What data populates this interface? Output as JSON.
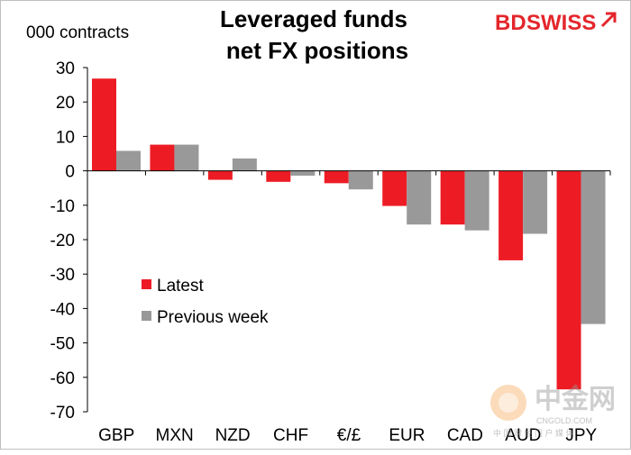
{
  "chart_data": {
    "type": "bar",
    "title": [
      "Leveraged funds",
      "net FX positions"
    ],
    "ylabel": "000 contracts",
    "xlabel": "",
    "ylim": [
      -70,
      30
    ],
    "yticks": [
      30,
      20,
      10,
      0,
      -10,
      -20,
      -30,
      -40,
      -50,
      -60,
      -70
    ],
    "categories": [
      "GBP",
      "MXN",
      "NZD",
      "CHF",
      "€/£",
      "EUR",
      "CAD",
      "AUD",
      "JPY"
    ],
    "series": [
      {
        "name": "Latest",
        "color": "#ed1c24",
        "values": [
          26.8,
          7.6,
          -2.6,
          -3.2,
          -3.6,
          -10.2,
          -15.6,
          -26.0,
          -63.5
        ]
      },
      {
        "name": "Previous week",
        "color": "#999999",
        "values": [
          5.8,
          7.6,
          3.6,
          -1.4,
          -5.4,
          -15.6,
          -17.3,
          -18.3,
          -44.5
        ]
      }
    ],
    "legend": [
      "Latest",
      "Previous week"
    ],
    "grid": false
  },
  "branding": {
    "logo_left": "BD",
    "logo_right": "SWISS",
    "watermark_cn": "中金网",
    "watermark_url": "CNGOLD.COM",
    "watermark_tag": "中 国 财 经 门 户 媒 体",
    "accent": "#e3262b"
  }
}
